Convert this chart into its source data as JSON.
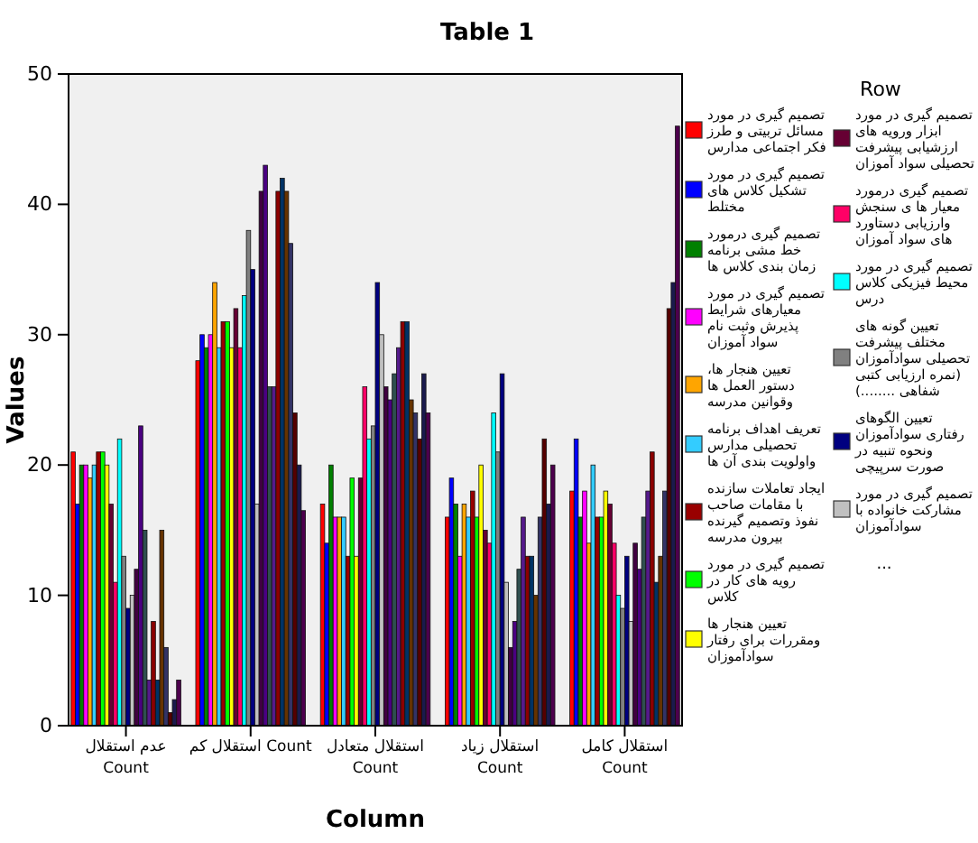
{
  "chart_data": {
    "type": "bar",
    "title": "Table 1",
    "xlabel": "Column",
    "ylabel": "Values",
    "legend_title": "Row",
    "legend": "right",
    "grid": false,
    "categories": [
      "عدم استقلال\nCount",
      "استقلال کم Count",
      "استقلال متعادل\nCount",
      "استقلال زیاد\nCount",
      "استقلال کامل\nCount"
    ],
    "ylim": [
      0,
      50
    ],
    "yticks": [
      0,
      10,
      20,
      30,
      40,
      50
    ],
    "annotations": [
      "..."
    ],
    "series": [
      {
        "name": "تصمیم گیری در مورد مسائل تربیتی و طرز فکر اجتماعی مدارس",
        "color": "#ff0000",
        "values": [
          21,
          28,
          17,
          16,
          18
        ]
      },
      {
        "name": "تصمیم گیری در مورد تشکیل کلاس های مختلط",
        "color": "#0000ff",
        "values": [
          17,
          30,
          14,
          19,
          22
        ]
      },
      {
        "name": "تصمیم گیری درمورد خط مشی برنامه زمان بندی کلاس ها",
        "color": "#008000",
        "values": [
          20,
          29,
          20,
          17,
          16
        ]
      },
      {
        "name": "تصمیم گیری در مورد معیارهای شرایط پذیرش وثبت نام سواد آموزان",
        "color": "#ff00ff",
        "values": [
          20,
          30,
          16,
          13,
          18
        ]
      },
      {
        "name": "تعیین هنجار ها، دستور العمل ها وقوانین مدرسه",
        "color": "#ffa500",
        "values": [
          19,
          34,
          16,
          17,
          14
        ]
      },
      {
        "name": "تعریف اهداف برنامه تحصیلی مدارس واولویت بندی آن ها",
        "color": "#33ccff",
        "values": [
          20,
          29,
          16,
          16,
          20
        ]
      },
      {
        "name": "ایجاد تعاملات سازنده با مقامات صاحب نفوذ وتصمیم گیرنده بیرون مدرسه",
        "color": "#990000",
        "values": [
          21,
          31,
          13,
          18,
          16
        ]
      },
      {
        "name": "تصمیم گیری در مورد رویه های کار در کلاس",
        "color": "#00ff00",
        "values": [
          21,
          31,
          19,
          16,
          16
        ]
      },
      {
        "name": "تعیین هنجار ها ومقررات برای رفتار سوادآموزان",
        "color": "#ffff00",
        "values": [
          20,
          29,
          13,
          20,
          18
        ]
      },
      {
        "name": "تصمیم گیری در مورد ابزار ورویه های ارزشیابی پیشرفت تحصیلی سواد آموزان",
        "color": "#660033",
        "values": [
          17,
          32,
          19,
          15,
          17
        ]
      },
      {
        "name": "تصمیم گیری درمورد معیار ها ی سنجش وارزیابی دستاورد های سواد آموزان",
        "color": "#ff0066",
        "values": [
          11,
          29,
          26,
          14,
          14
        ]
      },
      {
        "name": "تصمیم گیری در مورد محیط فیزیکی کلاس درس",
        "color": "#00ffff",
        "values": [
          22,
          33,
          22,
          24,
          10
        ]
      },
      {
        "name": "تعیین گونه های مختلف پیشرفت تحصیلی سوادآموزان (نمره ارزیابی کتبی شفاهی ........)",
        "color": "#808080",
        "values": [
          13,
          38,
          23,
          21,
          9
        ]
      },
      {
        "name": "تعیین الگوهای رفتاری سوادآموزان ونحوه تنبیه در صورت سرپیچی",
        "color": "#000080",
        "values": [
          9,
          35,
          34,
          27,
          13
        ]
      },
      {
        "name": "تصمیم گیری در مورد مشارکت خانواده با سوادآموزان",
        "color": "#c0c0c0",
        "values": [
          10,
          17,
          30,
          11,
          8
        ]
      },
      {
        "color": "#400040",
        "values": [
          12,
          41,
          26,
          6,
          14
        ]
      },
      {
        "color": "#4b0082",
        "values": [
          23,
          43,
          25,
          8,
          12
        ]
      },
      {
        "color": "#2f4f4f",
        "values": [
          15,
          26,
          27,
          12,
          16
        ]
      },
      {
        "color": "#551a8b",
        "values": [
          3.5,
          26,
          29,
          16,
          18
        ]
      },
      {
        "color": "#8b0000",
        "values": [
          8,
          41,
          31,
          13,
          21
        ]
      },
      {
        "color": "#003366",
        "values": [
          3.5,
          42,
          31,
          13,
          11
        ]
      },
      {
        "color": "#663300",
        "values": [
          15,
          41,
          25,
          10,
          13
        ]
      },
      {
        "color": "#333366",
        "values": [
          6,
          37,
          24,
          16,
          18
        ]
      },
      {
        "color": "#550000",
        "values": [
          1,
          24,
          22,
          22,
          32
        ]
      },
      {
        "color": "#1a1a4d",
        "values": [
          2,
          20,
          27,
          17,
          34
        ]
      },
      {
        "color": "#4d004d",
        "values": [
          3.5,
          16.5,
          24,
          20,
          46
        ]
      }
    ]
  }
}
